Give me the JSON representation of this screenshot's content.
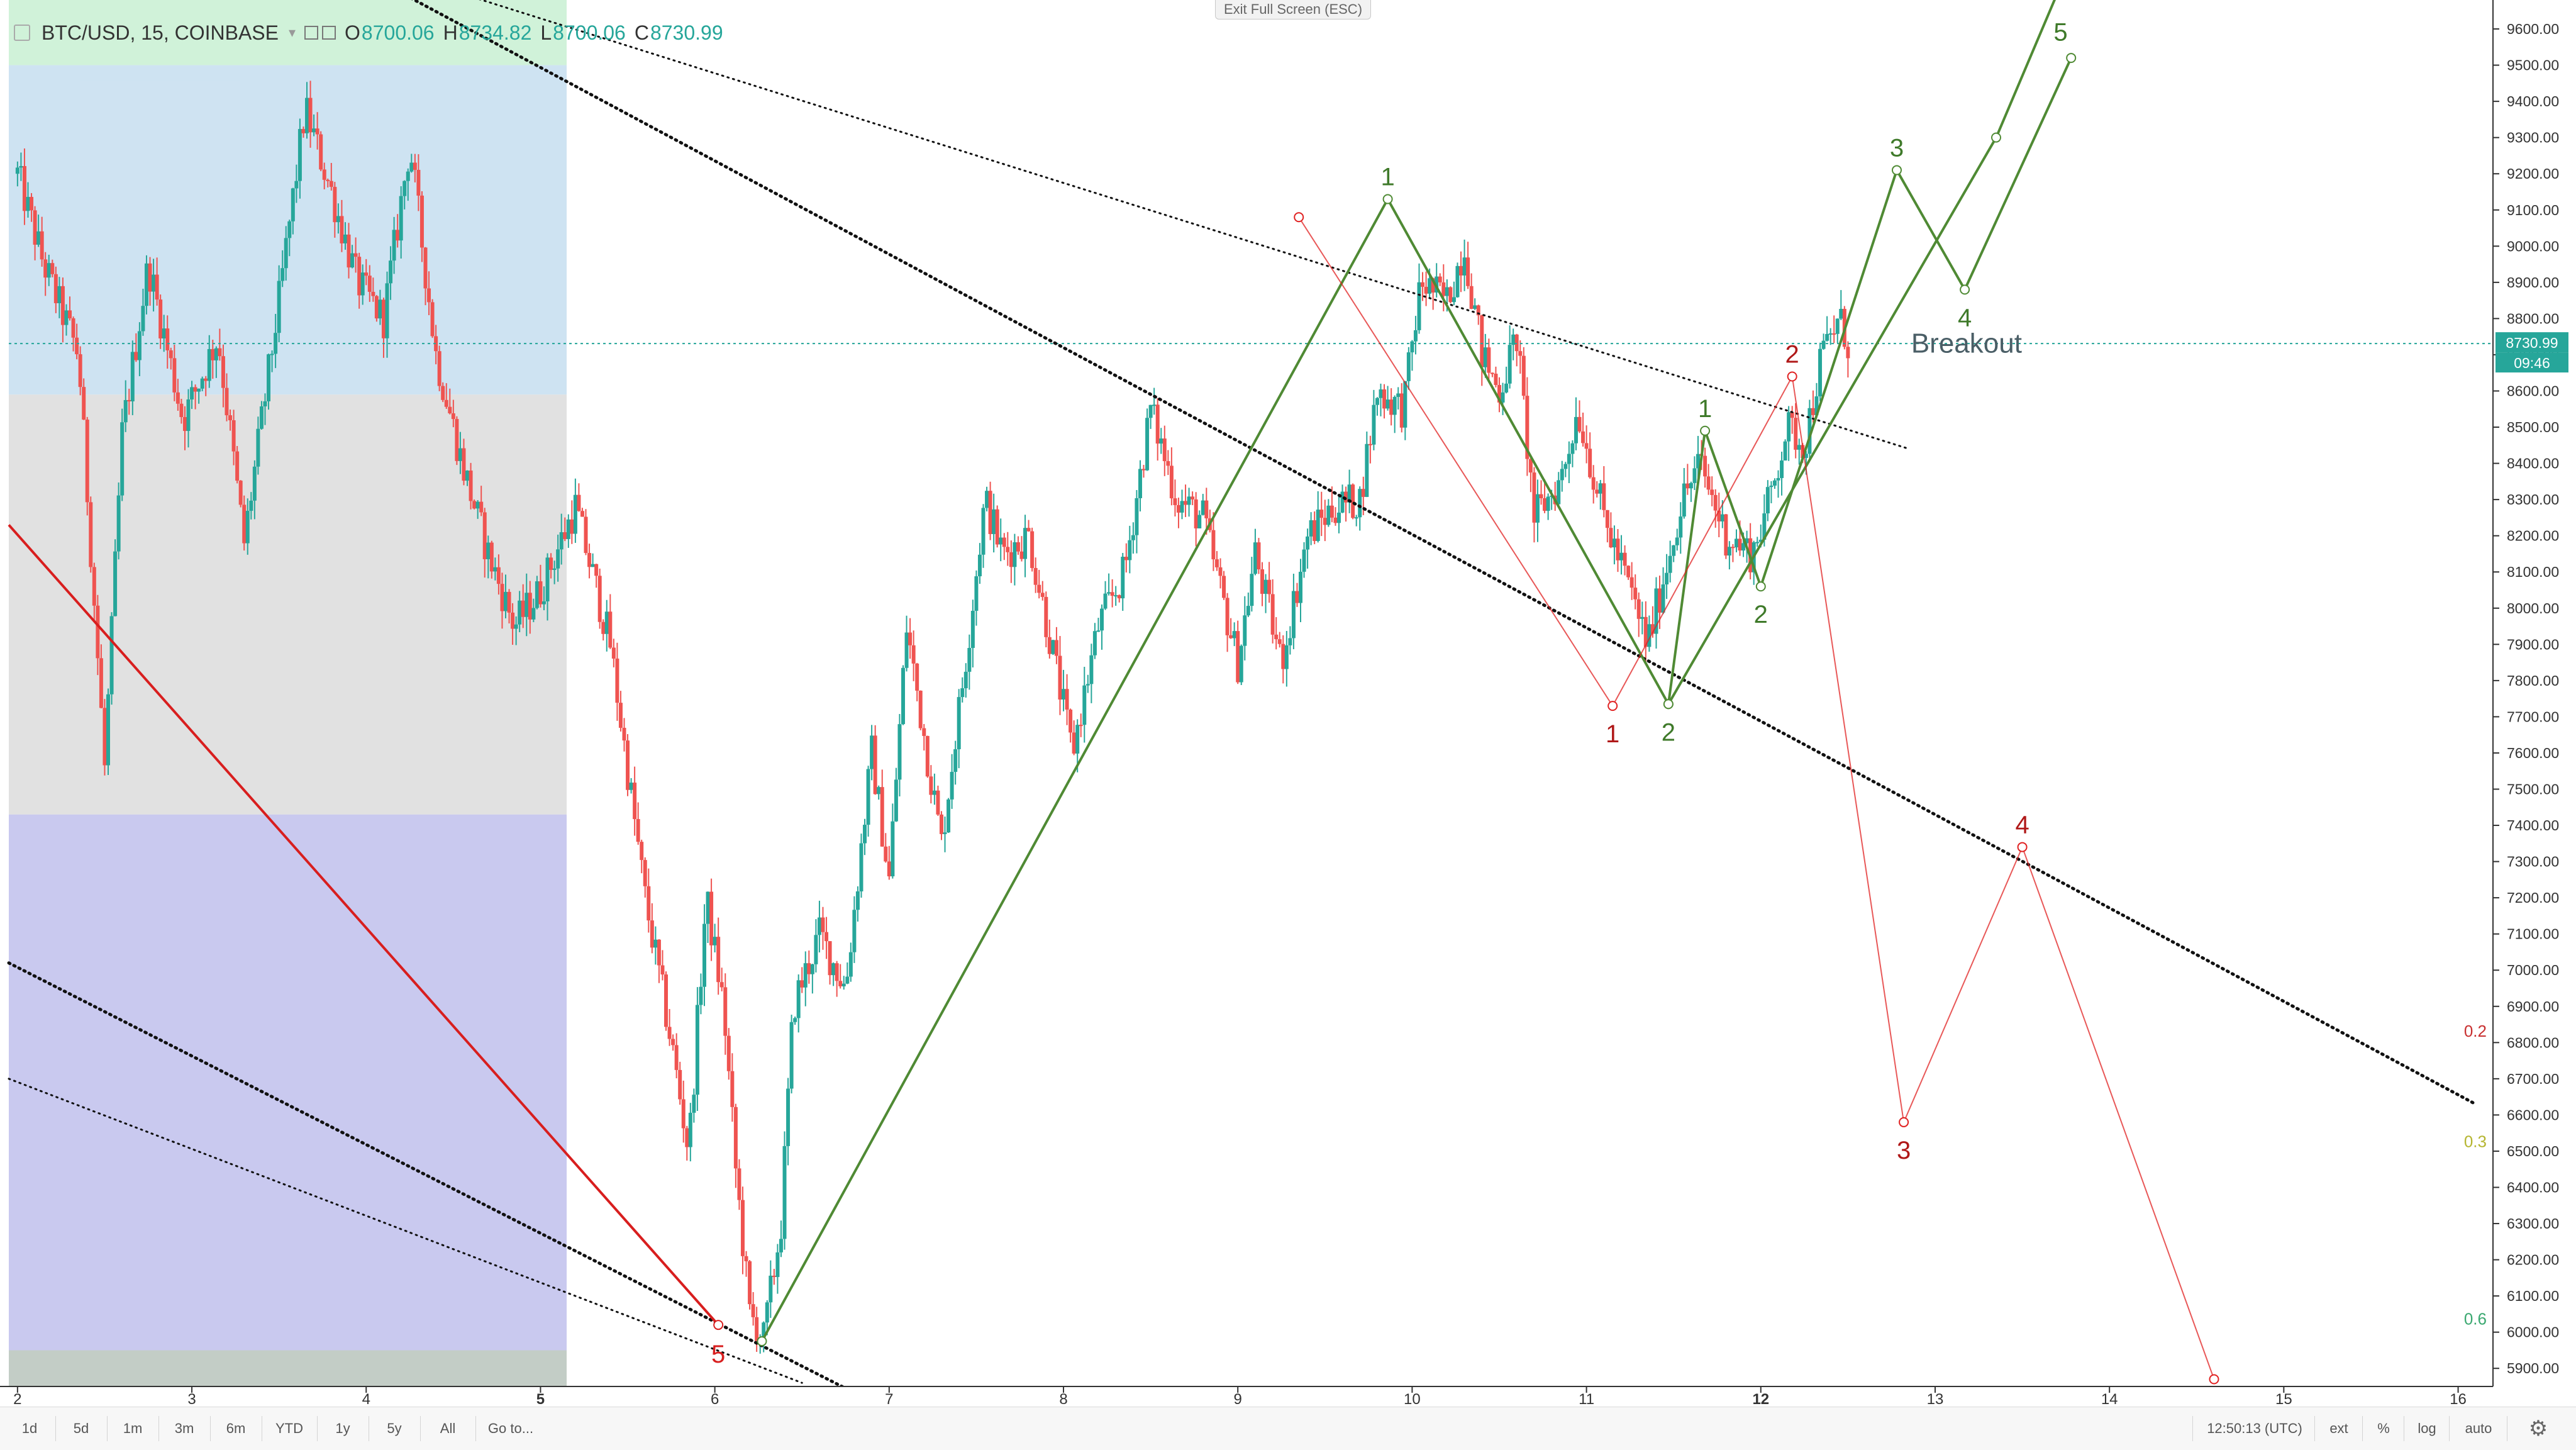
{
  "header": {
    "symbol": "BTC/USD, 15, COINBASE",
    "open_label": "O",
    "open": "8700.06",
    "high_label": "H",
    "high": "8734.82",
    "low_label": "L",
    "low": "8700.06",
    "close_label": "C",
    "close": "8730.99"
  },
  "exit_fullscreen": "Exit Full Screen (ESC)",
  "price_tag": {
    "price": "8730.99",
    "countdown": "09:46"
  },
  "bottom_bar": {
    "ranges": [
      "1d",
      "5d",
      "1m",
      "3m",
      "6m",
      "YTD",
      "1y",
      "5y",
      "All"
    ],
    "goto": "Go to...",
    "time": "12:50:13 (UTC)",
    "ext": "ext",
    "percent": "%",
    "log": "log",
    "auto": "auto",
    "settings_icon": "gear-icon"
  },
  "colors": {
    "up": "#26a69a",
    "down": "#ef5350",
    "wave_green": "#4f8a34",
    "wave_red": "#e02020",
    "trend_red": "#d81e1e",
    "zone_green": "#c8f0d2",
    "zone_blue": "#c6def0",
    "zone_gray": "#dcdcdc",
    "zone_purple": "#c0c0ec",
    "zone_slate": "#b8c4bc"
  },
  "chart_data": {
    "type": "candlestick",
    "symbol": "BTC/USD",
    "interval": "15",
    "exchange": "COINBASE",
    "y_scale": "linear",
    "ylim": [
      5850,
      9680
    ],
    "xlim": [
      1.95,
      16.2
    ],
    "x_ticks": [
      2,
      3,
      4,
      5,
      6,
      7,
      8,
      9,
      10,
      11,
      12,
      13,
      14,
      15,
      16
    ],
    "x_ticks_bold": [
      5,
      12
    ],
    "y_ticks": [
      5900,
      6000,
      6100,
      6200,
      6300,
      6400,
      6500,
      6600,
      6700,
      6800,
      6900,
      7000,
      7100,
      7200,
      7300,
      7400,
      7500,
      7600,
      7700,
      7800,
      7900,
      8000,
      8100,
      8200,
      8300,
      8400,
      8500,
      8600,
      8700,
      8800,
      8900,
      9000,
      9100,
      9200,
      9300,
      9400,
      9500,
      9600
    ],
    "last_price": 8730.99,
    "grid": false,
    "price_path": [
      [
        2.0,
        9200
      ],
      [
        2.15,
        8950
      ],
      [
        2.35,
        8700
      ],
      [
        2.5,
        7560
      ],
      [
        2.6,
        8480
      ],
      [
        2.75,
        8950
      ],
      [
        2.95,
        8520
      ],
      [
        3.15,
        8750
      ],
      [
        3.3,
        8180
      ],
      [
        3.5,
        8850
      ],
      [
        3.65,
        9380
      ],
      [
        3.8,
        9150
      ],
      [
        3.95,
        8900
      ],
      [
        4.1,
        8800
      ],
      [
        4.25,
        9280
      ],
      [
        4.4,
        8700
      ],
      [
        4.55,
        8400
      ],
      [
        4.7,
        8150
      ],
      [
        4.85,
        7950
      ],
      [
        5.0,
        8050
      ],
      [
        5.2,
        8280
      ],
      [
        5.4,
        7900
      ],
      [
        5.6,
        7200
      ],
      [
        5.75,
        6800
      ],
      [
        5.85,
        6500
      ],
      [
        5.95,
        7200
      ],
      [
        6.05,
        6900
      ],
      [
        6.12,
        6450
      ],
      [
        6.2,
        6050
      ],
      [
        6.28,
        5980
      ],
      [
        6.38,
        6300
      ],
      [
        6.45,
        6900
      ],
      [
        6.6,
        7100
      ],
      [
        6.75,
        6950
      ],
      [
        6.9,
        7600
      ],
      [
        7.0,
        7250
      ],
      [
        7.1,
        7950
      ],
      [
        7.2,
        7650
      ],
      [
        7.3,
        7350
      ],
      [
        7.45,
        7900
      ],
      [
        7.55,
        8300
      ],
      [
        7.65,
        8150
      ],
      [
        7.8,
        8200
      ],
      [
        7.95,
        7850
      ],
      [
        8.05,
        7600
      ],
      [
        8.2,
        7950
      ],
      [
        8.35,
        8100
      ],
      [
        8.5,
        8550
      ],
      [
        8.65,
        8300
      ],
      [
        8.8,
        8250
      ],
      [
        9.0,
        7850
      ],
      [
        9.1,
        8150
      ],
      [
        9.25,
        7850
      ],
      [
        9.4,
        8200
      ],
      [
        9.55,
        8280
      ],
      [
        9.7,
        8300
      ],
      [
        9.8,
        8600
      ],
      [
        9.95,
        8550
      ],
      [
        10.05,
        8900
      ],
      [
        10.2,
        8850
      ],
      [
        10.3,
        9000
      ],
      [
        10.4,
        8700
      ],
      [
        10.5,
        8600
      ],
      [
        10.6,
        8750
      ],
      [
        10.7,
        8250
      ],
      [
        10.85,
        8350
      ],
      [
        10.95,
        8550
      ],
      [
        11.1,
        8250
      ],
      [
        11.25,
        8050
      ],
      [
        11.35,
        7900
      ],
      [
        11.45,
        8100
      ],
      [
        11.55,
        8300
      ],
      [
        11.65,
        8400
      ],
      [
        11.8,
        8200
      ],
      [
        11.95,
        8150
      ],
      [
        12.05,
        8300
      ],
      [
        12.15,
        8500
      ],
      [
        12.25,
        8450
      ],
      [
        12.35,
        8700
      ],
      [
        12.45,
        8800
      ],
      [
        12.5,
        8730
      ]
    ],
    "zones": [
      {
        "name": "green-zone",
        "x": [
          1.95,
          5.15
        ],
        "y": [
          9500,
          9680
        ],
        "color": "#c8f0d2"
      },
      {
        "name": "blue-zone",
        "x": [
          1.95,
          5.15
        ],
        "y": [
          8590,
          9500
        ],
        "color": "#c6def0"
      },
      {
        "name": "gray-zone",
        "x": [
          1.95,
          5.15
        ],
        "y": [
          7430,
          8590
        ],
        "color": "#dcdcdc"
      },
      {
        "name": "purple-zone",
        "x": [
          1.95,
          5.15
        ],
        "y": [
          5950,
          7430
        ],
        "color": "#c0c0ec"
      },
      {
        "name": "slate-zone",
        "x": [
          1.95,
          5.15
        ],
        "y": [
          5850,
          5950
        ],
        "color": "#b8c4bc"
      }
    ],
    "trend_lines": [
      {
        "name": "upper-channel-dotted",
        "style": "dotted",
        "points": [
          [
            4.4,
            9720
          ],
          [
            12.85,
            8440
          ]
        ]
      },
      {
        "name": "mid-descending-dotted",
        "style": "dotted",
        "points": [
          [
            4.2,
            9700
          ],
          [
            16.1,
            6630
          ]
        ]
      },
      {
        "name": "lower-dotted-1",
        "style": "dotted",
        "points": [
          [
            1.95,
            7020
          ],
          [
            6.77,
            5840
          ]
        ]
      },
      {
        "name": "lower-dotted-2",
        "style": "dotted",
        "points": [
          [
            1.95,
            6700
          ],
          [
            6.5,
            5860
          ]
        ]
      },
      {
        "name": "red-trendline",
        "style": "solid",
        "points": [
          [
            1.95,
            8230
          ],
          [
            6.02,
            6020
          ]
        ]
      }
    ],
    "waves": [
      {
        "name": "green-primary",
        "points": [
          [
            6.27,
            5975
          ],
          [
            9.86,
            9130
          ],
          [
            11.47,
            7735
          ],
          [
            13.35,
            9300
          ],
          [
            13.72,
            9720
          ]
        ],
        "labels": [
          {
            "text": "1",
            "x": 9.86,
            "y": 9130,
            "pos": "above"
          },
          {
            "text": "2",
            "x": 11.47,
            "y": 7735,
            "pos": "below"
          },
          {
            "text": "5",
            "x": 13.72,
            "y": 9530,
            "pos": "above"
          }
        ]
      },
      {
        "name": "green-subwave",
        "points": [
          [
            11.47,
            7735
          ],
          [
            11.68,
            8490
          ],
          [
            12.0,
            8060
          ],
          [
            12.78,
            9210
          ],
          [
            13.17,
            8880
          ],
          [
            13.78,
            9520
          ]
        ],
        "labels": [
          {
            "text": "1",
            "x": 11.68,
            "y": 8490,
            "pos": "above"
          },
          {
            "text": "2",
            "x": 12.0,
            "y": 8060,
            "pos": "below"
          },
          {
            "text": "3",
            "x": 12.78,
            "y": 9210,
            "pos": "above"
          },
          {
            "text": "4",
            "x": 13.17,
            "y": 8880,
            "pos": "below"
          }
        ]
      },
      {
        "name": "red-wave",
        "points": [
          [
            9.35,
            9080
          ],
          [
            11.15,
            7730
          ],
          [
            12.18,
            8640
          ],
          [
            12.82,
            6580
          ],
          [
            13.5,
            7340
          ],
          [
            14.6,
            5870
          ]
        ],
        "labels": [
          {
            "text": "1",
            "x": 11.15,
            "y": 7730,
            "pos": "below"
          },
          {
            "text": "2",
            "x": 12.18,
            "y": 8640,
            "pos": "above"
          },
          {
            "text": "3",
            "x": 12.82,
            "y": 6580,
            "pos": "below"
          },
          {
            "text": "4",
            "x": 13.5,
            "y": 7340,
            "pos": "above"
          }
        ]
      }
    ],
    "annotations": [
      {
        "text": "Breakout",
        "x": 13.18,
        "y": 8730
      },
      {
        "text": "5",
        "x": 6.02,
        "y": 5940,
        "color": "#d81e1e"
      }
    ],
    "fib_labels": [
      {
        "text": "0.2",
        "y": 6830,
        "color": "#c83030"
      },
      {
        "text": "0.3",
        "y": 6525,
        "color": "#b5b530"
      },
      {
        "text": "0.6",
        "y": 6035,
        "color": "#3aa870"
      }
    ]
  }
}
